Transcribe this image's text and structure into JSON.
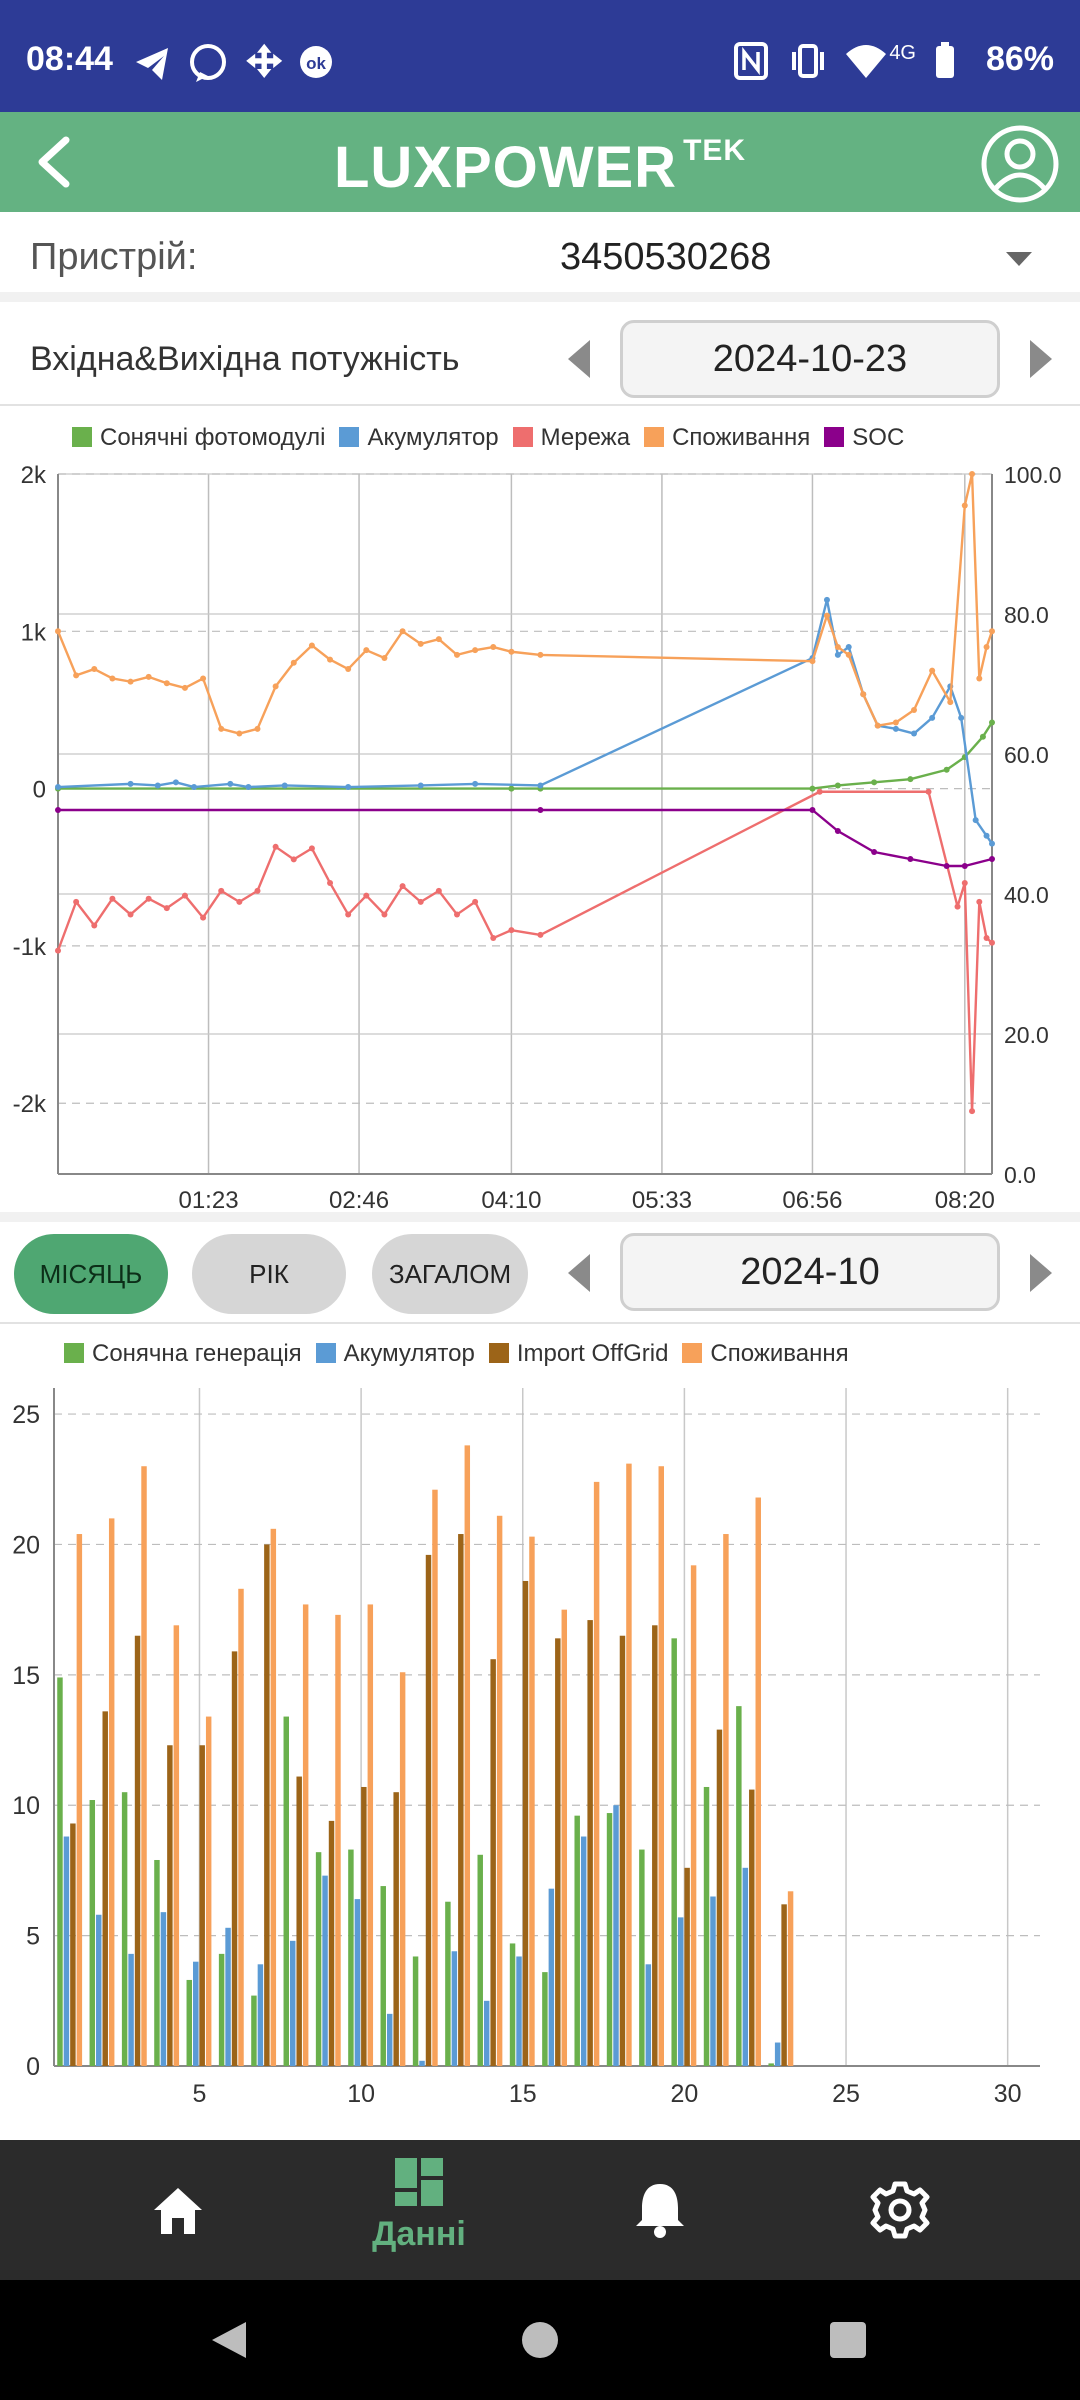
{
  "status_bar": {
    "time": "08:44",
    "network": "4G",
    "battery": "86%"
  },
  "app_bar": {
    "logo_text": "LUXPOWER",
    "logo_suffix": "TEK"
  },
  "device": {
    "label": "Пристрій:",
    "value": "3450530268"
  },
  "power_section": {
    "title": "Вхідна&Вихідна потужність",
    "date": "2024-10-23"
  },
  "line_chart_legend": [
    {
      "label": "Сонячні фотомодулі",
      "color": "#6ab04c"
    },
    {
      "label": "Акумулятор",
      "color": "#5b9bd5"
    },
    {
      "label": "Мережа",
      "color": "#ee6e6e"
    },
    {
      "label": "Споживання",
      "color": "#f7a15a"
    },
    {
      "label": "SOC",
      "color": "#8b008b"
    }
  ],
  "period_tabs": [
    {
      "label": "МІСЯЦЬ",
      "active": true
    },
    {
      "label": "РІК",
      "active": false
    },
    {
      "label": "ЗАГАЛОМ",
      "active": false
    }
  ],
  "month_section": {
    "date": "2024-10"
  },
  "bar_chart_legend": [
    {
      "label": "Сонячна генерація",
      "color": "#6ab04c"
    },
    {
      "label": "Акумулятор",
      "color": "#5b9bd5"
    },
    {
      "label": "Import OffGrid",
      "color": "#9c6418"
    },
    {
      "label": "Споживання",
      "color": "#f7a15a"
    }
  ],
  "bottom_nav": [
    {
      "icon": "home-icon",
      "label": "",
      "active": false
    },
    {
      "icon": "data-icon",
      "label": "Данні",
      "active": true
    },
    {
      "icon": "bell-icon",
      "label": "",
      "active": false
    },
    {
      "icon": "gear-icon",
      "label": "",
      "active": false
    }
  ],
  "chart_data": [
    {
      "type": "line",
      "x_unit": "minutes since 00:00",
      "xlim": [
        0,
        515
      ],
      "x_ticks": [
        83,
        166,
        250,
        333,
        416,
        500
      ],
      "x_tick_labels": [
        "01:23",
        "02:46",
        "04:10",
        "05:33",
        "06:56",
        "08:20"
      ],
      "ylim_left": [
        -2450,
        2000
      ],
      "y_ticks_left": [
        -2000,
        -1000,
        0,
        1000,
        2000
      ],
      "y_tick_labels_left": [
        "-2k",
        "-1k",
        "0",
        "1k",
        "2k"
      ],
      "ylim_right": [
        0,
        100
      ],
      "y_ticks_right": [
        0,
        20,
        40,
        60,
        80,
        100
      ],
      "y_tick_labels_right": [
        "0.0",
        "20.0",
        "40.0",
        "60.0",
        "80.0",
        "100.0"
      ],
      "grid": true,
      "legend": "top",
      "series": [
        {
          "name": "Сонячні фотомодулі",
          "axis": "left",
          "color": "#6ab04c",
          "x": [
            0,
            250,
            266,
            416,
            430,
            450,
            470,
            490,
            500,
            510,
            515
          ],
          "y": [
            0,
            0,
            0,
            0,
            20,
            40,
            60,
            120,
            200,
            330,
            420
          ]
        },
        {
          "name": "Акумулятор",
          "axis": "left",
          "color": "#5b9bd5",
          "x": [
            0,
            40,
            55,
            65,
            75,
            95,
            105,
            125,
            160,
            200,
            230,
            266,
            416,
            424,
            430,
            436,
            444,
            452,
            462,
            472,
            482,
            492,
            498,
            506,
            512,
            515
          ],
          "y": [
            10,
            30,
            20,
            40,
            10,
            30,
            10,
            20,
            10,
            20,
            30,
            20,
            830,
            1200,
            850,
            900,
            600,
            400,
            380,
            350,
            450,
            650,
            450,
            -200,
            -300,
            -350
          ]
        },
        {
          "name": "Мережа",
          "axis": "left",
          "color": "#ee6e6e",
          "x": [
            0,
            10,
            20,
            30,
            40,
            50,
            60,
            70,
            80,
            90,
            100,
            110,
            120,
            130,
            140,
            150,
            160,
            170,
            180,
            190,
            200,
            210,
            220,
            230,
            240,
            250,
            266,
            420,
            480,
            496,
            500,
            504,
            508,
            512,
            515
          ],
          "y": [
            -1030,
            -720,
            -870,
            -700,
            -800,
            -700,
            -760,
            -680,
            -820,
            -650,
            -720,
            -650,
            -370,
            -450,
            -380,
            -600,
            -800,
            -680,
            -800,
            -620,
            -720,
            -650,
            -800,
            -720,
            -950,
            -900,
            -930,
            -20,
            -20,
            -750,
            -600,
            -2050,
            -720,
            -950,
            -980
          ]
        },
        {
          "name": "Споживання",
          "axis": "left",
          "color": "#f7a15a",
          "x": [
            0,
            10,
            20,
            30,
            40,
            50,
            60,
            70,
            80,
            90,
            100,
            110,
            120,
            130,
            140,
            150,
            160,
            170,
            180,
            190,
            200,
            210,
            220,
            230,
            240,
            250,
            266,
            416,
            424,
            430,
            436,
            444,
            452,
            462,
            472,
            482,
            492,
            500,
            504,
            508,
            512,
            515
          ],
          "y": [
            1000,
            720,
            760,
            700,
            680,
            710,
            670,
            640,
            700,
            380,
            350,
            380,
            650,
            800,
            910,
            820,
            760,
            880,
            830,
            1000,
            920,
            950,
            850,
            880,
            900,
            870,
            850,
            810,
            1100,
            900,
            850,
            600,
            400,
            420,
            500,
            750,
            550,
            1800,
            2000,
            700,
            900,
            1000
          ]
        },
        {
          "name": "SOC",
          "axis": "right",
          "color": "#8b008b",
          "x": [
            0,
            266,
            416,
            430,
            450,
            470,
            490,
            500,
            515
          ],
          "y": [
            52,
            52,
            52,
            49,
            46,
            45,
            44,
            44,
            45
          ]
        }
      ]
    },
    {
      "type": "bar",
      "categories": [
        1,
        2,
        3,
        4,
        5,
        6,
        7,
        8,
        9,
        10,
        11,
        12,
        13,
        14,
        15,
        16,
        17,
        18,
        19,
        20,
        21,
        22,
        23
      ],
      "xlim": [
        0.5,
        31
      ],
      "x_ticks": [
        5,
        10,
        15,
        20,
        25,
        30
      ],
      "ylim": [
        0,
        26
      ],
      "y_ticks": [
        0,
        5,
        10,
        15,
        20,
        25
      ],
      "grid": true,
      "legend": "top",
      "series": [
        {
          "name": "Сонячна генерація",
          "color": "#6ab04c",
          "values": [
            14.9,
            10.2,
            10.5,
            7.9,
            3.3,
            4.3,
            2.7,
            13.4,
            8.2,
            8.3,
            6.9,
            4.2,
            6.3,
            8.1,
            4.7,
            3.6,
            9.6,
            9.7,
            8.3,
            16.4,
            10.7,
            13.8,
            0.1
          ]
        },
        {
          "name": "Акумулятор",
          "color": "#5b9bd5",
          "values": [
            8.8,
            5.8,
            4.3,
            5.9,
            4.0,
            5.3,
            3.9,
            4.8,
            7.3,
            6.4,
            2.0,
            0.2,
            4.4,
            2.5,
            4.2,
            6.8,
            8.8,
            10.0,
            3.9,
            5.7,
            6.5,
            7.6,
            0.9
          ]
        },
        {
          "name": "Import OffGrid",
          "color": "#9c6418",
          "values": [
            9.3,
            13.6,
            16.5,
            12.3,
            12.3,
            15.9,
            20.0,
            11.1,
            9.4,
            10.7,
            10.5,
            19.6,
            20.4,
            15.6,
            18.6,
            16.4,
            17.1,
            16.5,
            16.9,
            7.6,
            12.9,
            10.6,
            6.2
          ]
        },
        {
          "name": "Споживання",
          "color": "#f7a15a",
          "values": [
            20.4,
            21.0,
            23.0,
            16.9,
            13.4,
            18.3,
            20.6,
            17.7,
            17.3,
            17.7,
            15.1,
            22.1,
            23.8,
            21.1,
            20.3,
            17.5,
            22.4,
            23.1,
            23.0,
            19.2,
            20.4,
            21.8,
            6.7
          ]
        }
      ]
    }
  ]
}
